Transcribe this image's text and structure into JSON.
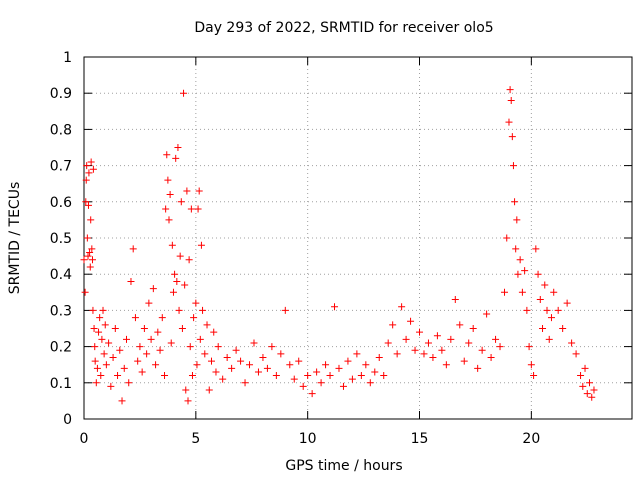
{
  "chart_data": {
    "type": "scatter",
    "title": "Day 293 of 2022, SRMTID for receiver olo5",
    "xlabel": "GPS time / hours",
    "ylabel": "SRMTID / TECUs",
    "xlim": [
      0,
      24.5
    ],
    "ylim": [
      0,
      1
    ],
    "xticks": [
      0,
      5,
      10,
      15,
      20
    ],
    "xtick_labels": [
      "0",
      "5",
      "10",
      "15",
      "20"
    ],
    "yticks": [
      0,
      0.1,
      0.2,
      0.3,
      0.4,
      0.5,
      0.6,
      0.7,
      0.8,
      0.9,
      1
    ],
    "ytick_labels": [
      "0",
      "0.1",
      "0.2",
      "0.3",
      "0.4",
      "0.5",
      "0.6",
      "0.7",
      "0.8",
      "0.9",
      "1"
    ],
    "grid": true,
    "marker": "+",
    "series": [
      {
        "name": "SRMTID",
        "color": "#ff0000",
        "points": [
          [
            0.0,
            0.44
          ],
          [
            0.05,
            0.35
          ],
          [
            0.08,
            0.6
          ],
          [
            0.1,
            0.66
          ],
          [
            0.12,
            0.7
          ],
          [
            0.15,
            0.5
          ],
          [
            0.18,
            0.45
          ],
          [
            0.2,
            0.59
          ],
          [
            0.22,
            0.68
          ],
          [
            0.25,
            0.46
          ],
          [
            0.28,
            0.42
          ],
          [
            0.3,
            0.55
          ],
          [
            0.32,
            0.71
          ],
          [
            0.35,
            0.47
          ],
          [
            0.38,
            0.44
          ],
          [
            0.4,
            0.3
          ],
          [
            0.42,
            0.69
          ],
          [
            0.45,
            0.25
          ],
          [
            0.48,
            0.2
          ],
          [
            0.5,
            0.16
          ],
          [
            0.55,
            0.1
          ],
          [
            0.6,
            0.14
          ],
          [
            0.65,
            0.24
          ],
          [
            0.7,
            0.28
          ],
          [
            0.75,
            0.12
          ],
          [
            0.8,
            0.22
          ],
          [
            0.85,
            0.3
          ],
          [
            0.9,
            0.18
          ],
          [
            0.95,
            0.26
          ],
          [
            1.0,
            0.15
          ],
          [
            1.1,
            0.21
          ],
          [
            1.2,
            0.09
          ],
          [
            1.3,
            0.17
          ],
          [
            1.4,
            0.25
          ],
          [
            1.5,
            0.12
          ],
          [
            1.6,
            0.19
          ],
          [
            1.7,
            0.05
          ],
          [
            1.8,
            0.14
          ],
          [
            1.9,
            0.22
          ],
          [
            2.0,
            0.1
          ],
          [
            2.1,
            0.38
          ],
          [
            2.2,
            0.47
          ],
          [
            2.3,
            0.28
          ],
          [
            2.4,
            0.16
          ],
          [
            2.5,
            0.2
          ],
          [
            2.6,
            0.13
          ],
          [
            2.7,
            0.25
          ],
          [
            2.8,
            0.18
          ],
          [
            2.9,
            0.32
          ],
          [
            3.0,
            0.22
          ],
          [
            3.1,
            0.36
          ],
          [
            3.2,
            0.15
          ],
          [
            3.3,
            0.24
          ],
          [
            3.4,
            0.19
          ],
          [
            3.5,
            0.28
          ],
          [
            3.6,
            0.12
          ],
          [
            3.65,
            0.58
          ],
          [
            3.7,
            0.73
          ],
          [
            3.75,
            0.66
          ],
          [
            3.8,
            0.55
          ],
          [
            3.85,
            0.62
          ],
          [
            3.9,
            0.21
          ],
          [
            3.95,
            0.48
          ],
          [
            4.0,
            0.35
          ],
          [
            4.05,
            0.4
          ],
          [
            4.1,
            0.72
          ],
          [
            4.15,
            0.38
          ],
          [
            4.2,
            0.75
          ],
          [
            4.25,
            0.3
          ],
          [
            4.3,
            0.45
          ],
          [
            4.35,
            0.6
          ],
          [
            4.4,
            0.25
          ],
          [
            4.45,
            0.9
          ],
          [
            4.5,
            0.37
          ],
          [
            4.55,
            0.08
          ],
          [
            4.6,
            0.63
          ],
          [
            4.65,
            0.05
          ],
          [
            4.7,
            0.44
          ],
          [
            4.75,
            0.2
          ],
          [
            4.8,
            0.58
          ],
          [
            4.85,
            0.12
          ],
          [
            4.9,
            0.28
          ],
          [
            5.0,
            0.32
          ],
          [
            5.05,
            0.15
          ],
          [
            5.1,
            0.58
          ],
          [
            5.15,
            0.63
          ],
          [
            5.2,
            0.22
          ],
          [
            5.25,
            0.48
          ],
          [
            5.3,
            0.3
          ],
          [
            5.4,
            0.18
          ],
          [
            5.5,
            0.26
          ],
          [
            5.6,
            0.08
          ],
          [
            5.7,
            0.16
          ],
          [
            5.8,
            0.24
          ],
          [
            5.9,
            0.13
          ],
          [
            6.0,
            0.2
          ],
          [
            6.2,
            0.11
          ],
          [
            6.4,
            0.17
          ],
          [
            6.6,
            0.14
          ],
          [
            6.8,
            0.19
          ],
          [
            7.0,
            0.16
          ],
          [
            7.2,
            0.1
          ],
          [
            7.4,
            0.15
          ],
          [
            7.6,
            0.21
          ],
          [
            7.8,
            0.13
          ],
          [
            8.0,
            0.17
          ],
          [
            8.2,
            0.14
          ],
          [
            8.4,
            0.2
          ],
          [
            8.6,
            0.12
          ],
          [
            8.8,
            0.18
          ],
          [
            9.0,
            0.3
          ],
          [
            9.2,
            0.15
          ],
          [
            9.4,
            0.11
          ],
          [
            9.6,
            0.16
          ],
          [
            9.8,
            0.09
          ],
          [
            10.0,
            0.12
          ],
          [
            10.2,
            0.07
          ],
          [
            10.4,
            0.13
          ],
          [
            10.6,
            0.1
          ],
          [
            10.8,
            0.15
          ],
          [
            11.0,
            0.12
          ],
          [
            11.2,
            0.31
          ],
          [
            11.4,
            0.14
          ],
          [
            11.6,
            0.09
          ],
          [
            11.8,
            0.16
          ],
          [
            12.0,
            0.11
          ],
          [
            12.2,
            0.18
          ],
          [
            12.4,
            0.12
          ],
          [
            12.6,
            0.15
          ],
          [
            12.8,
            0.1
          ],
          [
            13.0,
            0.13
          ],
          [
            13.2,
            0.17
          ],
          [
            13.4,
            0.12
          ],
          [
            13.6,
            0.21
          ],
          [
            13.8,
            0.26
          ],
          [
            14.0,
            0.18
          ],
          [
            14.2,
            0.31
          ],
          [
            14.4,
            0.22
          ],
          [
            14.6,
            0.27
          ],
          [
            14.8,
            0.19
          ],
          [
            15.0,
            0.24
          ],
          [
            15.2,
            0.18
          ],
          [
            15.4,
            0.21
          ],
          [
            15.6,
            0.17
          ],
          [
            15.8,
            0.23
          ],
          [
            16.0,
            0.19
          ],
          [
            16.2,
            0.15
          ],
          [
            16.4,
            0.22
          ],
          [
            16.6,
            0.33
          ],
          [
            16.8,
            0.26
          ],
          [
            17.0,
            0.16
          ],
          [
            17.2,
            0.21
          ],
          [
            17.4,
            0.25
          ],
          [
            17.6,
            0.14
          ],
          [
            17.8,
            0.19
          ],
          [
            18.0,
            0.29
          ],
          [
            18.2,
            0.17
          ],
          [
            18.4,
            0.22
          ],
          [
            18.6,
            0.2
          ],
          [
            18.8,
            0.35
          ],
          [
            18.9,
            0.5
          ],
          [
            19.0,
            0.82
          ],
          [
            19.05,
            0.91
          ],
          [
            19.1,
            0.88
          ],
          [
            19.15,
            0.78
          ],
          [
            19.2,
            0.7
          ],
          [
            19.25,
            0.6
          ],
          [
            19.3,
            0.47
          ],
          [
            19.35,
            0.55
          ],
          [
            19.4,
            0.4
          ],
          [
            19.5,
            0.44
          ],
          [
            19.6,
            0.35
          ],
          [
            19.7,
            0.41
          ],
          [
            19.8,
            0.3
          ],
          [
            19.9,
            0.2
          ],
          [
            20.0,
            0.15
          ],
          [
            20.1,
            0.12
          ],
          [
            20.2,
            0.47
          ],
          [
            20.3,
            0.4
          ],
          [
            20.4,
            0.33
          ],
          [
            20.5,
            0.25
          ],
          [
            20.6,
            0.37
          ],
          [
            20.7,
            0.3
          ],
          [
            20.8,
            0.22
          ],
          [
            20.9,
            0.28
          ],
          [
            21.0,
            0.35
          ],
          [
            21.2,
            0.3
          ],
          [
            21.4,
            0.25
          ],
          [
            21.6,
            0.32
          ],
          [
            21.8,
            0.21
          ],
          [
            22.0,
            0.18
          ],
          [
            22.2,
            0.12
          ],
          [
            22.3,
            0.09
          ],
          [
            22.4,
            0.14
          ],
          [
            22.5,
            0.07
          ],
          [
            22.6,
            0.1
          ],
          [
            22.7,
            0.06
          ],
          [
            22.8,
            0.08
          ]
        ]
      }
    ]
  }
}
